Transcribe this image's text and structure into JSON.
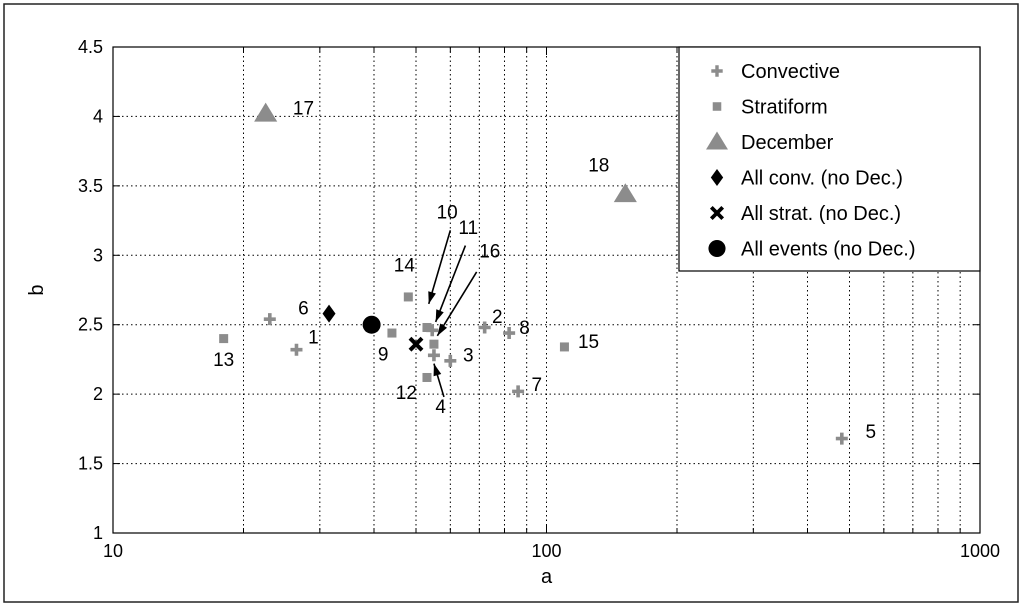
{
  "chart_data": {
    "type": "scatter",
    "xlabel": "a",
    "ylabel": "b",
    "xscale": "log",
    "xlim": [
      10,
      1000
    ],
    "ylim": [
      1,
      4.5
    ],
    "x_ticks": [
      {
        "value": 10,
        "label": "10"
      },
      {
        "value": 100,
        "label": "100"
      },
      {
        "value": 1000,
        "label": "1000"
      }
    ],
    "y_ticks": [
      {
        "value": 1,
        "label": "1"
      },
      {
        "value": 1.5,
        "label": "1.5"
      },
      {
        "value": 2,
        "label": "2"
      },
      {
        "value": 2.5,
        "label": "2.5"
      },
      {
        "value": 3,
        "label": "3"
      },
      {
        "value": 3.5,
        "label": "3.5"
      },
      {
        "value": 4,
        "label": "4"
      },
      {
        "value": 4.5,
        "label": "4.5"
      }
    ],
    "grid": true,
    "legend_position": "top-right",
    "colors": {
      "gray": "#8c8c8c",
      "black": "#000000"
    },
    "series": [
      {
        "name": "Convective",
        "marker": "plus",
        "color": "#8c8c8c",
        "points": [
          {
            "x": 26.5,
            "y": 2.32,
            "label": "1"
          },
          {
            "x": 72,
            "y": 2.48,
            "label": "2"
          },
          {
            "x": 60,
            "y": 2.24,
            "label": "3"
          },
          {
            "x": 55,
            "y": 2.28,
            "label": "4"
          },
          {
            "x": 480,
            "y": 1.68,
            "label": "5"
          },
          {
            "x": 23,
            "y": 2.54,
            "label": "6"
          },
          {
            "x": 86,
            "y": 2.02,
            "label": "7"
          },
          {
            "x": 82,
            "y": 2.44,
            "label": "8"
          },
          {
            "x": 54.5,
            "y": 2.46,
            "label": "16"
          }
        ]
      },
      {
        "name": "Stratiform",
        "marker": "square",
        "color": "#8c8c8c",
        "points": [
          {
            "x": 44,
            "y": 2.44,
            "label": "9"
          },
          {
            "x": 53,
            "y": 2.48,
            "label": "10"
          },
          {
            "x": 55,
            "y": 2.36,
            "label": "11"
          },
          {
            "x": 53,
            "y": 2.12,
            "label": "12"
          },
          {
            "x": 18,
            "y": 2.4,
            "label": "13"
          },
          {
            "x": 48,
            "y": 2.7,
            "label": "14"
          },
          {
            "x": 110,
            "y": 2.34,
            "label": "15"
          }
        ]
      },
      {
        "name": "December",
        "marker": "triangle",
        "color": "#8c8c8c",
        "points": [
          {
            "x": 22.5,
            "y": 4.02,
            "label": "17"
          },
          {
            "x": 152,
            "y": 3.44,
            "label": "18"
          }
        ]
      },
      {
        "name": "All conv. (no Dec.)",
        "marker": "diamond",
        "color": "#000000",
        "points": [
          {
            "x": 31.5,
            "y": 2.58
          }
        ]
      },
      {
        "name": "All strat. (no Dec.)",
        "marker": "x",
        "color": "#000000",
        "points": [
          {
            "x": 50,
            "y": 2.36
          }
        ]
      },
      {
        "name": "All events (no Dec.)",
        "marker": "circle",
        "color": "#000000",
        "points": [
          {
            "x": 39.5,
            "y": 2.5
          }
        ]
      }
    ],
    "point_labels": [
      {
        "text": "1",
        "x": 29,
        "y": 2.4
      },
      {
        "text": "2",
        "x": 77,
        "y": 2.55
      },
      {
        "text": "3",
        "x": 66,
        "y": 2.27
      },
      {
        "text": "4",
        "x": 57,
        "y": 1.9
      },
      {
        "text": "5",
        "x": 560,
        "y": 1.72
      },
      {
        "text": "6",
        "x": 27.5,
        "y": 2.61
      },
      {
        "text": "7",
        "x": 95,
        "y": 2.06
      },
      {
        "text": "8",
        "x": 89,
        "y": 2.47
      },
      {
        "text": "9",
        "x": 42,
        "y": 2.28
      },
      {
        "text": "10",
        "x": 59,
        "y": 3.3
      },
      {
        "text": "11",
        "x": 66,
        "y": 3.19
      },
      {
        "text": "12",
        "x": 47.5,
        "y": 2.0
      },
      {
        "text": "13",
        "x": 18,
        "y": 2.24
      },
      {
        "text": "14",
        "x": 47,
        "y": 2.92
      },
      {
        "text": "15",
        "x": 125,
        "y": 2.37
      },
      {
        "text": "16",
        "x": 74,
        "y": 3.02
      },
      {
        "text": "17",
        "x": 27.5,
        "y": 4.05
      },
      {
        "text": "18",
        "x": 132,
        "y": 3.64
      }
    ],
    "arrows": [
      {
        "from": [
          60,
          3.18
        ],
        "to": [
          53.5,
          2.65
        ]
      },
      {
        "from": [
          65,
          3.07
        ],
        "to": [
          55.5,
          2.52
        ]
      },
      {
        "from": [
          69,
          2.88
        ],
        "to": [
          56,
          2.42
        ]
      },
      {
        "from": [
          58,
          1.98
        ],
        "to": [
          55,
          2.22
        ]
      }
    ]
  }
}
